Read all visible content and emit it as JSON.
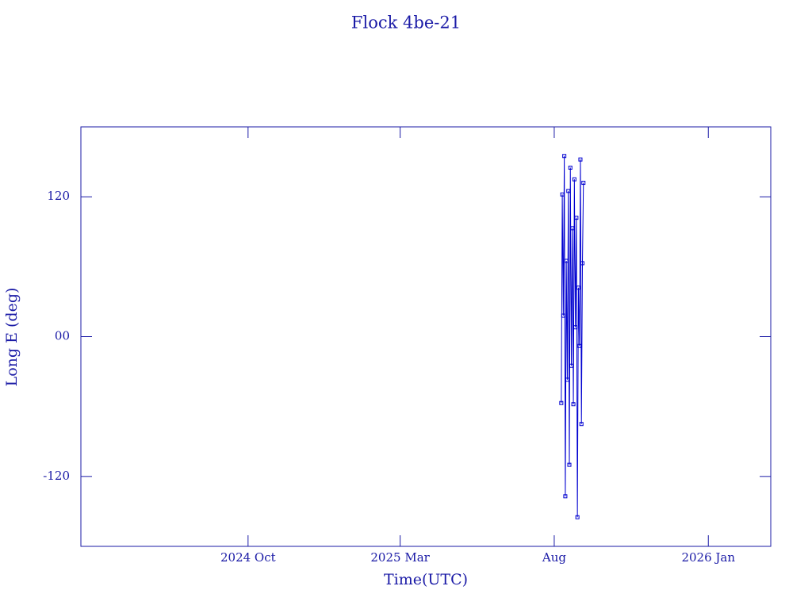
{
  "chart_data": {
    "type": "line",
    "title": "Flock 4be-21",
    "x_label": "Time(UTC)",
    "y_label": "Long E (deg)",
    "color": "#0000d0",
    "xlim": [
      "2024-04-18",
      "2026-03-04"
    ],
    "xticks": [
      {
        "value": "2024-10-01",
        "label": "2024 Oct"
      },
      {
        "value": "2025-03-01",
        "label": "2025 Mar"
      },
      {
        "value": "2025-08-01",
        "label": "Aug"
      },
      {
        "value": "2026-01-01",
        "label": "2026 Jan"
      }
    ],
    "ylim": [
      -180,
      180
    ],
    "yticks": [
      -120,
      {
        "value": 0,
        "label": "00"
      },
      120
    ],
    "x": [
      "2025-08-08",
      "2025-08-09",
      "2025-08-10",
      "2025-08-11",
      "2025-08-12",
      "2025-08-13",
      "2025-08-14",
      "2025-08-15",
      "2025-08-16",
      "2025-08-17",
      "2025-08-18",
      "2025-08-19",
      "2025-08-20",
      "2025-08-21",
      "2025-08-22",
      "2025-08-23",
      "2025-08-24",
      "2025-08-25",
      "2025-08-26",
      "2025-08-27",
      "2025-08-28",
      "2025-08-29",
      "2025-08-30"
    ],
    "series": [
      {
        "name": "Long E",
        "color": "#0000d0",
        "values": [
          -57,
          122,
          18,
          155,
          -137,
          65,
          -37,
          125,
          -110,
          145,
          -25,
          93,
          -58,
          135,
          8,
          102,
          -155,
          42,
          -8,
          152,
          -75,
          63,
          132
        ]
      }
    ]
  }
}
